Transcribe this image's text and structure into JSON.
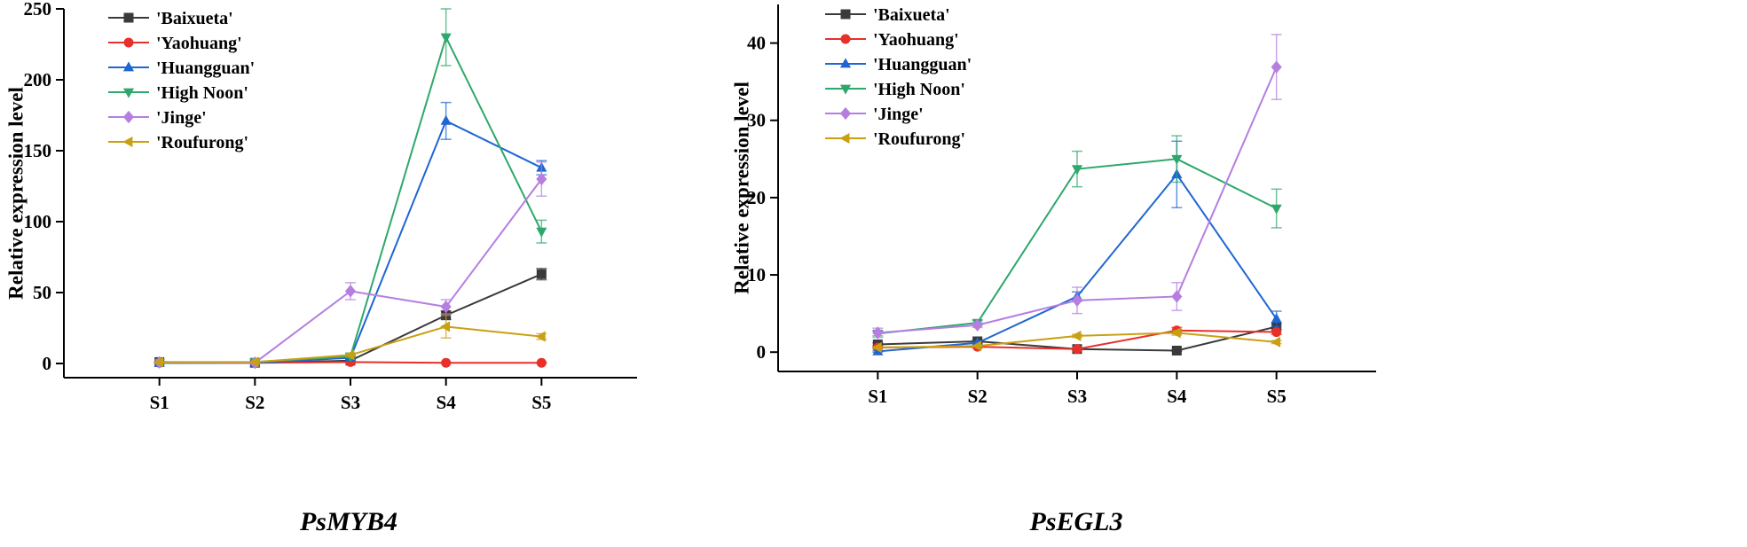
{
  "chart_data": [
    {
      "type": "line",
      "title": "PsMYB4",
      "xlabel": "",
      "ylabel": "Relative expression level",
      "categories": [
        "S1",
        "S2",
        "S3",
        "S4",
        "S5"
      ],
      "ylim": [
        -10,
        250
      ],
      "yticks": [
        0,
        50,
        100,
        150,
        200,
        250
      ],
      "legend_position": "top-left",
      "series": [
        {
          "name": "'Baixueta'",
          "color": "#3a3a3a",
          "marker": "square",
          "values": [
            1,
            0.5,
            2,
            34,
            63
          ],
          "errors": [
            0.5,
            0.3,
            0.5,
            3,
            4
          ]
        },
        {
          "name": "'Yaohuang'",
          "color": "#e8302a",
          "marker": "circle",
          "values": [
            0.5,
            0.5,
            1,
            0.5,
            0.5
          ],
          "errors": [
            0.2,
            0.2,
            0.3,
            0.2,
            0.2
          ]
        },
        {
          "name": "'Huangguan'",
          "color": "#1f66d1",
          "marker": "triangle-up",
          "values": [
            0.3,
            0.4,
            4,
            171,
            138
          ],
          "errors": [
            0.2,
            0.2,
            1,
            13,
            5
          ]
        },
        {
          "name": "'High Noon'",
          "color": "#2ea86a",
          "marker": "triangle-down",
          "values": [
            0.5,
            1,
            5,
            230,
            93
          ],
          "errors": [
            0.2,
            0.3,
            1,
            20,
            8
          ]
        },
        {
          "name": "'Jinge'",
          "color": "#b57ee0",
          "marker": "diamond",
          "values": [
            0.8,
            0.5,
            51,
            40,
            130
          ],
          "errors": [
            0.3,
            0.3,
            6,
            5,
            12
          ]
        },
        {
          "name": "'Roufurong'",
          "color": "#c9a012",
          "marker": "triangle-left",
          "values": [
            1,
            1,
            6,
            26,
            19
          ],
          "errors": [
            0.3,
            0.3,
            1,
            8,
            2
          ]
        }
      ]
    },
    {
      "type": "line",
      "title": "PsEGL3",
      "xlabel": "",
      "ylabel": "Relative expression level",
      "categories": [
        "S1",
        "S2",
        "S3",
        "S4",
        "S5"
      ],
      "ylim": [
        -2.5,
        45
      ],
      "yticks": [
        0,
        10,
        20,
        30,
        40
      ],
      "legend_position": "top-left",
      "series": [
        {
          "name": "'Baixueta'",
          "color": "#3a3a3a",
          "marker": "square",
          "values": [
            1,
            1.4,
            0.4,
            0.2,
            3.3
          ],
          "errors": [
            0.2,
            0.2,
            0.1,
            0.1,
            0.4
          ]
        },
        {
          "name": "'Yaohuang'",
          "color": "#e8302a",
          "marker": "circle",
          "values": [
            0.6,
            0.7,
            0.4,
            2.8,
            2.6
          ],
          "errors": [
            0.1,
            0.1,
            0.1,
            0.4,
            0.3
          ]
        },
        {
          "name": "'Huangguan'",
          "color": "#1f66d1",
          "marker": "triangle-up",
          "values": [
            0.1,
            1.2,
            7.2,
            23,
            4.3
          ],
          "errors": [
            0.1,
            0.2,
            0.6,
            4.3,
            1
          ]
        },
        {
          "name": "'High Noon'",
          "color": "#2ea86a",
          "marker": "triangle-down",
          "values": [
            2.4,
            3.8,
            23.7,
            25,
            18.6
          ],
          "errors": [
            0.3,
            0.3,
            2.3,
            3,
            2.5
          ]
        },
        {
          "name": "'Jinge'",
          "color": "#b57ee0",
          "marker": "diamond",
          "values": [
            2.5,
            3.5,
            6.7,
            7.2,
            36.9
          ],
          "errors": [
            0.6,
            0.3,
            1.7,
            1.8,
            4.2
          ]
        },
        {
          "name": "'Roufurong'",
          "color": "#c9a012",
          "marker": "triangle-left",
          "values": [
            0.6,
            0.8,
            2.1,
            2.5,
            1.3
          ],
          "errors": [
            0.1,
            0.1,
            0.2,
            0.3,
            0.2
          ]
        }
      ]
    }
  ]
}
